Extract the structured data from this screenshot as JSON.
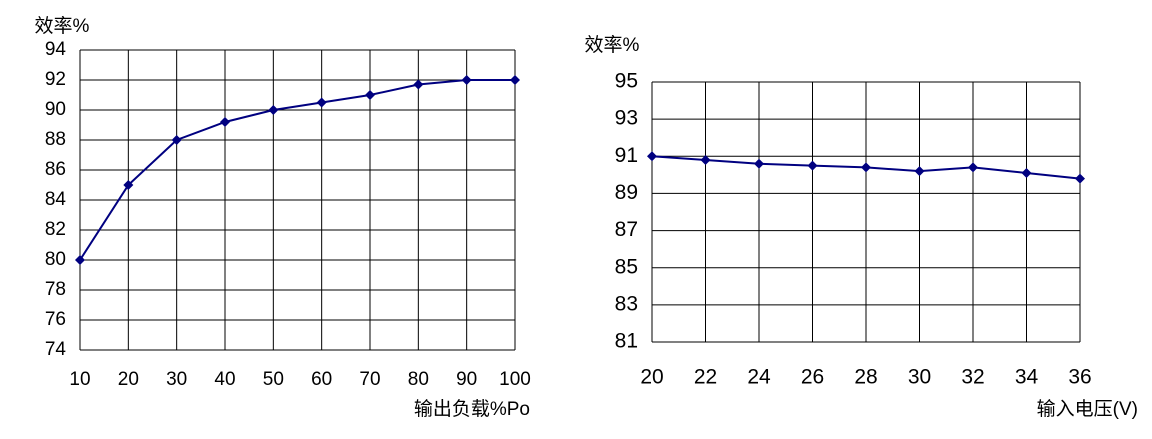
{
  "chart_data": [
    {
      "type": "line",
      "y_label": "效率%",
      "x_label": "输出负载%Po",
      "x": [
        10,
        20,
        30,
        40,
        50,
        60,
        70,
        80,
        90,
        100
      ],
      "series": [
        {
          "color": "#000080",
          "values": [
            80,
            85,
            88,
            89.2,
            90,
            90.5,
            91,
            91.7,
            92,
            92
          ]
        }
      ],
      "xlim": [
        10,
        100
      ],
      "xticks": [
        10,
        20,
        30,
        40,
        50,
        60,
        70,
        80,
        90,
        100
      ],
      "ylim": [
        74,
        94
      ],
      "yticks": [
        74,
        76,
        78,
        80,
        82,
        84,
        86,
        88,
        90,
        92,
        94
      ],
      "grid": true
    },
    {
      "type": "line",
      "y_label": "效率%",
      "x_label": "输入电压(V)",
      "x": [
        20,
        22,
        24,
        26,
        28,
        30,
        32,
        34,
        36
      ],
      "series": [
        {
          "color": "#000080",
          "values": [
            91,
            90.8,
            90.6,
            90.5,
            90.4,
            90.2,
            90.4,
            90.1,
            89.8
          ]
        }
      ],
      "xlim": [
        20,
        36
      ],
      "xticks": [
        20,
        22,
        24,
        26,
        28,
        30,
        32,
        34,
        36
      ],
      "ylim": [
        81,
        95
      ],
      "yticks": [
        81,
        83,
        85,
        87,
        89,
        91,
        93,
        95
      ],
      "grid": true
    }
  ]
}
